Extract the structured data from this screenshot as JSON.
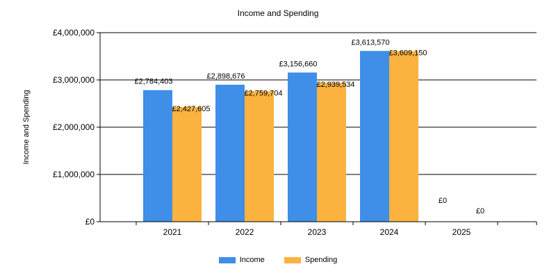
{
  "chart_data": {
    "type": "bar",
    "title": "Income and Spending",
    "ylabel": "Income and Spending",
    "xlabel": "",
    "categories": [
      "2021",
      "2022",
      "2023",
      "2024",
      "2025"
    ],
    "ylim": [
      0,
      4000000
    ],
    "yticks": [
      0,
      1000000,
      2000000,
      3000000,
      4000000
    ],
    "ytick_labels": [
      "£0",
      "£1,000,000",
      "£2,000,000",
      "£3,000,000",
      "£4,000,000"
    ],
    "grid": true,
    "legend_position": "bottom-center",
    "series": [
      {
        "name": "Income",
        "color": "#3f8ee8",
        "values": [
          2784403,
          2898676,
          3156660,
          3613570,
          0
        ],
        "labels": [
          "£2,784,403",
          "£2,898,676",
          "£3,156,660",
          "£3,613,570",
          "£0"
        ]
      },
      {
        "name": "Spending",
        "color": "#fbb23f",
        "values": [
          2427605,
          2759704,
          2939534,
          3609150,
          0
        ],
        "labels": [
          "£2,427,605",
          "£2,759,704",
          "£2,939,534",
          "£3,609,150",
          "£0"
        ]
      }
    ]
  }
}
